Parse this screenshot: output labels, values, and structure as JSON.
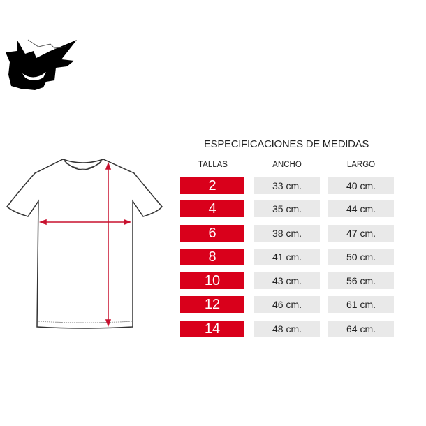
{
  "title": "ESPECIFICACIONES DE MEDIDAS",
  "headers": {
    "tallas": "TALLAS",
    "ancho": "ANCHO",
    "largo": "LARGO"
  },
  "rows": [
    {
      "talla": "2",
      "ancho": "33 cm.",
      "largo": "40 cm."
    },
    {
      "talla": "4",
      "ancho": "35 cm.",
      "largo": "44 cm."
    },
    {
      "talla": "6",
      "ancho": "38 cm.",
      "largo": "47 cm."
    },
    {
      "talla": "8",
      "ancho": "41 cm.",
      "largo": "50 cm."
    },
    {
      "talla": "10",
      "ancho": "43 cm.",
      "largo": "56 cm."
    },
    {
      "talla": "12",
      "ancho": "46 cm.",
      "largo": "61 cm."
    },
    {
      "talla": "14",
      "ancho": "48 cm.",
      "largo": "64 cm."
    }
  ],
  "colors": {
    "accent": "#d9001b",
    "cell_bg": "#e9e9e9"
  },
  "icons": {
    "logo": "ghost-face-logo",
    "diagram": "tshirt-measurement-diagram"
  }
}
